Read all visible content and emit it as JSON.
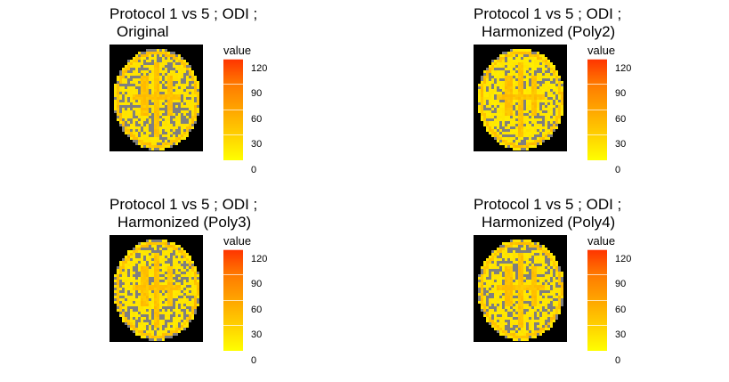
{
  "chart_data": [
    {
      "type": "heatmap",
      "title_lines": [
        "Protocol 1 vs 5 ; ODI ;",
        "Original"
      ],
      "legend_title": "value",
      "scale": {
        "min": 0,
        "max": 120,
        "ticks": [
          "0",
          "30",
          "60",
          "90",
          "120"
        ],
        "low_color": "#ffff00",
        "high_color": "#ff3300"
      },
      "background_color": "#000000",
      "missing_color": "#7f7f7f",
      "pattern": "original"
    },
    {
      "type": "heatmap",
      "title_lines": [
        "Protocol 1 vs 5 ; ODI ;",
        "Harmonized (Poly2)"
      ],
      "legend_title": "value",
      "scale": {
        "min": 0,
        "max": 120,
        "ticks": [
          "0",
          "30",
          "60",
          "90",
          "120"
        ],
        "low_color": "#ffff00",
        "high_color": "#ff3300"
      },
      "background_color": "#000000",
      "missing_color": "#7f7f7f",
      "pattern": "poly2"
    },
    {
      "type": "heatmap",
      "title_lines": [
        "Protocol 1 vs 5 ; ODI ;",
        "Harmonized (Poly3)"
      ],
      "legend_title": "value",
      "scale": {
        "min": 0,
        "max": 120,
        "ticks": [
          "0",
          "30",
          "60",
          "90",
          "120"
        ],
        "low_color": "#ffff00",
        "high_color": "#ff3300"
      },
      "background_color": "#000000",
      "missing_color": "#7f7f7f",
      "pattern": "poly3"
    },
    {
      "type": "heatmap",
      "title_lines": [
        "Protocol 1 vs 5 ; ODI ;",
        "Harmonized (Poly4)"
      ],
      "legend_title": "value",
      "scale": {
        "min": 0,
        "max": 120,
        "ticks": [
          "0",
          "30",
          "60",
          "90",
          "120"
        ],
        "low_color": "#ffff00",
        "high_color": "#ff3300"
      },
      "background_color": "#000000",
      "missing_color": "#7f7f7f",
      "pattern": "poly4"
    }
  ]
}
